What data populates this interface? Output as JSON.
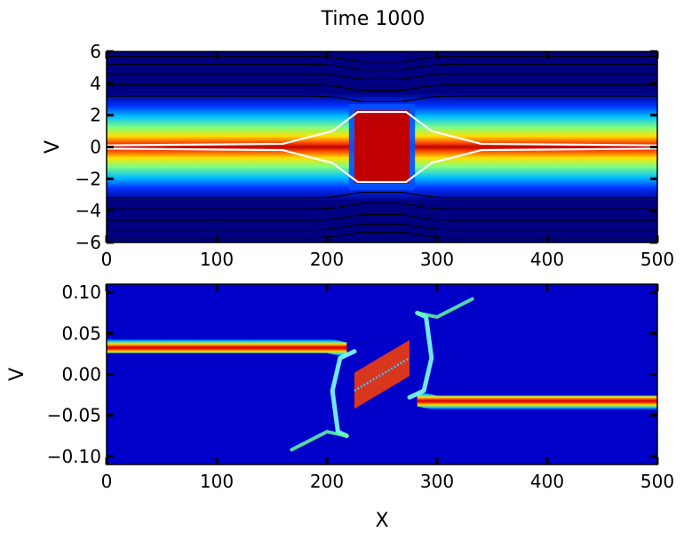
{
  "title": "Time 1000",
  "chart_data": [
    {
      "type": "heatmap",
      "xlabel": "",
      "ylabel": "V",
      "xlim": [
        0,
        500
      ],
      "ylim": [
        -6,
        6
      ],
      "xticks": [
        0,
        100,
        200,
        300,
        400,
        500
      ],
      "yticks": [
        -6,
        -4,
        -2,
        0,
        2,
        4,
        6
      ],
      "xtick_labels": [
        "0",
        "100",
        "200",
        "300",
        "400",
        "500"
      ],
      "ytick_labels": [
        "−6",
        "−4",
        "−2",
        "0",
        "2",
        "4",
        "6"
      ],
      "colormap": "jet",
      "background_color": "#000080",
      "band": {
        "uniform_halfwidth": 2.2,
        "trapped_region_x": [
          225,
          275
        ],
        "trapped_halfwidth": 2.3
      },
      "separatrix_color": "#ffffff",
      "separatrix": {
        "x": [
          0,
          160,
          205,
          228,
          272,
          295,
          340,
          500
        ],
        "vmax": [
          0.1,
          0.2,
          1.0,
          2.2,
          2.2,
          1.0,
          0.2,
          0.1
        ],
        "vmin": [
          -0.1,
          -0.2,
          -1.0,
          -2.2,
          -2.2,
          -1.0,
          -0.2,
          -0.1
        ]
      },
      "contour_color": "#000000",
      "contour_levels_v": [
        -5.7,
        -5.2,
        -4.6,
        -3.9,
        -3.2,
        3.2,
        3.9,
        4.6,
        5.2,
        5.7
      ]
    },
    {
      "type": "heatmap",
      "xlabel": "X",
      "ylabel": "V",
      "xlim": [
        0,
        500
      ],
      "ylim": [
        -0.11,
        0.11
      ],
      "xticks": [
        0,
        100,
        200,
        300,
        400,
        500
      ],
      "yticks": [
        -0.1,
        -0.05,
        0.0,
        0.05,
        0.1
      ],
      "xtick_labels": [
        "0",
        "100",
        "200",
        "300",
        "400",
        "500"
      ],
      "ytick_labels": [
        "−0.10",
        "−0.05",
        "0.00",
        "0.05",
        "0.10"
      ],
      "colormap": "jet",
      "background_color": "#0000c8",
      "beams": [
        {
          "x": [
            0,
            200,
            218
          ],
          "v": [
            0.035,
            0.035,
            0.03
          ],
          "halfwidth": 0.009
        },
        {
          "x": [
            282,
            300,
            500
          ],
          "v": [
            -0.03,
            -0.035,
            -0.035
          ],
          "halfwidth": 0.009
        }
      ],
      "central_diagonal": {
        "x": [
          225,
          275
        ],
        "v": [
          -0.02,
          0.02
        ],
        "halfwidth": 0.022
      },
      "tails": [
        {
          "x": [
            168,
            200,
            218
          ],
          "v": [
            -0.092,
            -0.07,
            -0.075
          ]
        },
        {
          "x": [
            282,
            300,
            332
          ],
          "v": [
            0.075,
            0.07,
            0.092
          ]
        }
      ],
      "hooks": [
        {
          "x": [
            218,
            210,
            205,
            212,
            225
          ],
          "v": [
            -0.075,
            -0.07,
            -0.02,
            0.02,
            0.028
          ]
        },
        {
          "x": [
            282,
            290,
            295,
            288,
            275
          ],
          "v": [
            0.075,
            0.07,
            0.02,
            -0.02,
            -0.028
          ]
        }
      ]
    }
  ]
}
